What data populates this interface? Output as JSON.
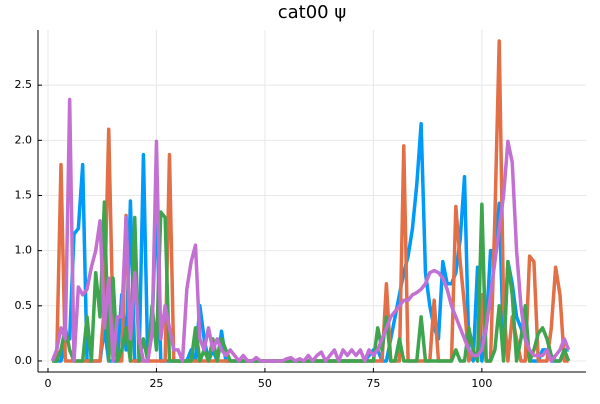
{
  "chart_data": {
    "type": "line",
    "title": "cat00 ψ",
    "x": [
      1,
      2,
      3,
      4,
      5,
      6,
      7,
      8,
      9,
      10,
      11,
      12,
      13,
      14,
      15,
      16,
      17,
      18,
      19,
      20,
      21,
      22,
      23,
      24,
      25,
      26,
      27,
      28,
      29,
      30,
      31,
      32,
      33,
      34,
      35,
      36,
      37,
      38,
      39,
      40,
      41,
      42,
      43,
      44,
      45,
      46,
      47,
      48,
      49,
      50,
      51,
      52,
      53,
      54,
      55,
      56,
      57,
      58,
      59,
      60,
      61,
      62,
      63,
      64,
      65,
      66,
      67,
      68,
      69,
      70,
      71,
      72,
      73,
      74,
      75,
      76,
      77,
      78,
      79,
      80,
      81,
      82,
      83,
      84,
      85,
      86,
      87,
      88,
      89,
      90,
      91,
      92,
      93,
      94,
      95,
      96,
      97,
      98,
      99,
      100,
      101,
      102,
      103,
      104,
      105,
      106,
      107,
      108,
      109,
      110,
      111,
      112,
      113,
      114,
      115,
      116,
      117,
      118,
      119,
      120
    ],
    "series": [
      {
        "color": "#009af9",
        "values": [
          0,
          0,
          0,
          0.2,
          0.2,
          1.15,
          1.2,
          1.78,
          0,
          0,
          0,
          0,
          0.3,
          0,
          0,
          0,
          0.6,
          0.1,
          1.45,
          0,
          0,
          1.87,
          0,
          0.3,
          1.5,
          0,
          0,
          0,
          0,
          0,
          0,
          0,
          0.1,
          0,
          0.5,
          0.2,
          0,
          0.1,
          0,
          0.27,
          0,
          0,
          0,
          0,
          0,
          0,
          0,
          0,
          0,
          0,
          0,
          0,
          0,
          0,
          0,
          0,
          0,
          0,
          0,
          0,
          0,
          0,
          0,
          0,
          0,
          0,
          0,
          0,
          0,
          0,
          0,
          0,
          0,
          0.05,
          0.1,
          0.1,
          0,
          0,
          0.2,
          0.4,
          0.6,
          0.8,
          0.95,
          1.2,
          1.6,
          2.15,
          0.8,
          0.5,
          0.3,
          0.2,
          0.9,
          0.7,
          0.7,
          0.8,
          1.1,
          1.67,
          0.1,
          0,
          0.85,
          0,
          0.3,
          1.0,
          1.0,
          1.43,
          0.1,
          0.9,
          0.7,
          0.4,
          0.3,
          0.2,
          0,
          0,
          0,
          0.1,
          0.1,
          0,
          0,
          0,
          0.1,
          0.1
        ]
      },
      {
        "color": "#e26f46",
        "values": [
          0,
          0,
          1.78,
          0,
          0,
          0,
          0,
          0,
          0,
          0,
          0,
          0,
          0.5,
          2.1,
          0.3,
          0,
          0,
          1.32,
          0,
          0,
          0,
          0,
          0,
          0,
          0,
          0,
          0,
          1.87,
          0,
          0,
          0,
          0,
          0,
          0,
          0,
          0,
          0,
          0,
          0,
          0,
          0,
          0,
          0,
          0,
          0,
          0,
          0,
          0,
          0,
          0,
          0,
          0,
          0,
          0,
          0,
          0,
          0,
          0,
          0,
          0,
          0,
          0,
          0,
          0,
          0,
          0,
          0,
          0,
          0,
          0,
          0,
          0,
          0,
          0,
          0,
          0,
          0,
          0.7,
          0,
          0,
          0,
          1.95,
          0,
          0,
          0,
          0,
          0,
          0,
          0.55,
          0,
          0,
          0,
          0,
          1.4,
          0.9,
          0.5,
          0,
          0.1,
          0,
          0.6,
          0,
          0,
          1.3,
          2.9,
          0.5,
          0,
          0.4,
          0.2,
          0,
          0,
          0.95,
          0.9,
          0,
          0,
          0,
          0.3,
          0.85,
          0.6,
          0,
          0
        ]
      },
      {
        "color": "#3ea44e",
        "values": [
          0,
          0,
          0.1,
          0.3,
          0.1,
          0,
          0,
          0,
          0.4,
          0,
          0.8,
          0.4,
          1.44,
          0,
          0.75,
          0,
          0.1,
          0.3,
          0,
          1.3,
          0,
          0.2,
          0,
          0.5,
          0.1,
          1.35,
          1.3,
          0,
          0,
          0,
          0,
          0,
          0,
          0.3,
          0,
          0.1,
          0,
          0.2,
          0,
          0.2,
          0.1,
          0,
          0,
          0,
          0,
          0,
          0,
          0,
          0,
          0,
          0,
          0,
          0,
          0,
          0,
          0,
          0,
          0,
          0,
          0,
          0,
          0,
          0,
          0,
          0,
          0,
          0,
          0,
          0,
          0,
          0,
          0,
          0,
          0,
          0,
          0.3,
          0.1,
          0.4,
          0,
          0,
          0.2,
          0,
          0,
          0,
          0,
          0.4,
          0,
          0,
          0,
          0,
          0,
          0,
          0,
          0.1,
          0,
          0,
          0.3,
          0.1,
          0,
          1.42,
          0,
          0,
          0.1,
          0.5,
          0,
          0.9,
          0.6,
          0,
          0.2,
          0.5,
          0,
          0.1,
          0.25,
          0.3,
          0.2,
          0.05,
          0,
          0,
          0.1,
          0
        ]
      },
      {
        "color": "#c271d2",
        "values": [
          0,
          0.1,
          0.3,
          0.2,
          2.37,
          0,
          0.67,
          0.6,
          0.65,
          0.85,
          1.0,
          1.27,
          0.3,
          0.75,
          0,
          0.4,
          0.4,
          1.3,
          0.2,
          0.8,
          0.2,
          0,
          0,
          0.25,
          1.99,
          0.2,
          0.5,
          0.3,
          0.1,
          0.1,
          0,
          0.65,
          0.9,
          1.05,
          0.2,
          0.1,
          0.3,
          0.1,
          0.2,
          0.1,
          0.05,
          0.1,
          0.05,
          0,
          0.05,
          0,
          0,
          0.03,
          0,
          0,
          0,
          0,
          0,
          0,
          0.02,
          0.03,
          0,
          0.02,
          0,
          0.05,
          0,
          0.05,
          0.08,
          0,
          0.05,
          0.1,
          0,
          0.1,
          0.05,
          0.1,
          0.05,
          0.1,
          0,
          0.1,
          0.05,
          0.1,
          0.2,
          0.3,
          0.4,
          0.45,
          0.5,
          0.55,
          0.55,
          0.6,
          0.62,
          0.65,
          0.7,
          0.8,
          0.82,
          0.8,
          0.75,
          0.65,
          0.5,
          0.4,
          0.3,
          0.2,
          0.1,
          0.05,
          0.05,
          0.1,
          0.3,
          0.6,
          0.9,
          1.2,
          1.5,
          1.99,
          1.8,
          1.0,
          0.5,
          0.2,
          0.1,
          0.05,
          0.05,
          0.05,
          0.1,
          0,
          0.05,
          0.1,
          0.2,
          0.1
        ]
      }
    ],
    "xlim": [
      -2.3,
      124
    ],
    "ylim": [
      -0.1,
      3.0
    ],
    "xticks": [
      0,
      25,
      50,
      75,
      100
    ],
    "yticks": [
      {
        "value": 0,
        "label": "0.0"
      },
      {
        "value": 0.5,
        "label": "0.5"
      },
      {
        "value": 1,
        "label": "1.0"
      },
      {
        "value": 1.5,
        "label": "1.5"
      },
      {
        "value": 2,
        "label": "2.0"
      },
      {
        "value": 2.5,
        "label": "2.5"
      }
    ],
    "grid": true
  }
}
